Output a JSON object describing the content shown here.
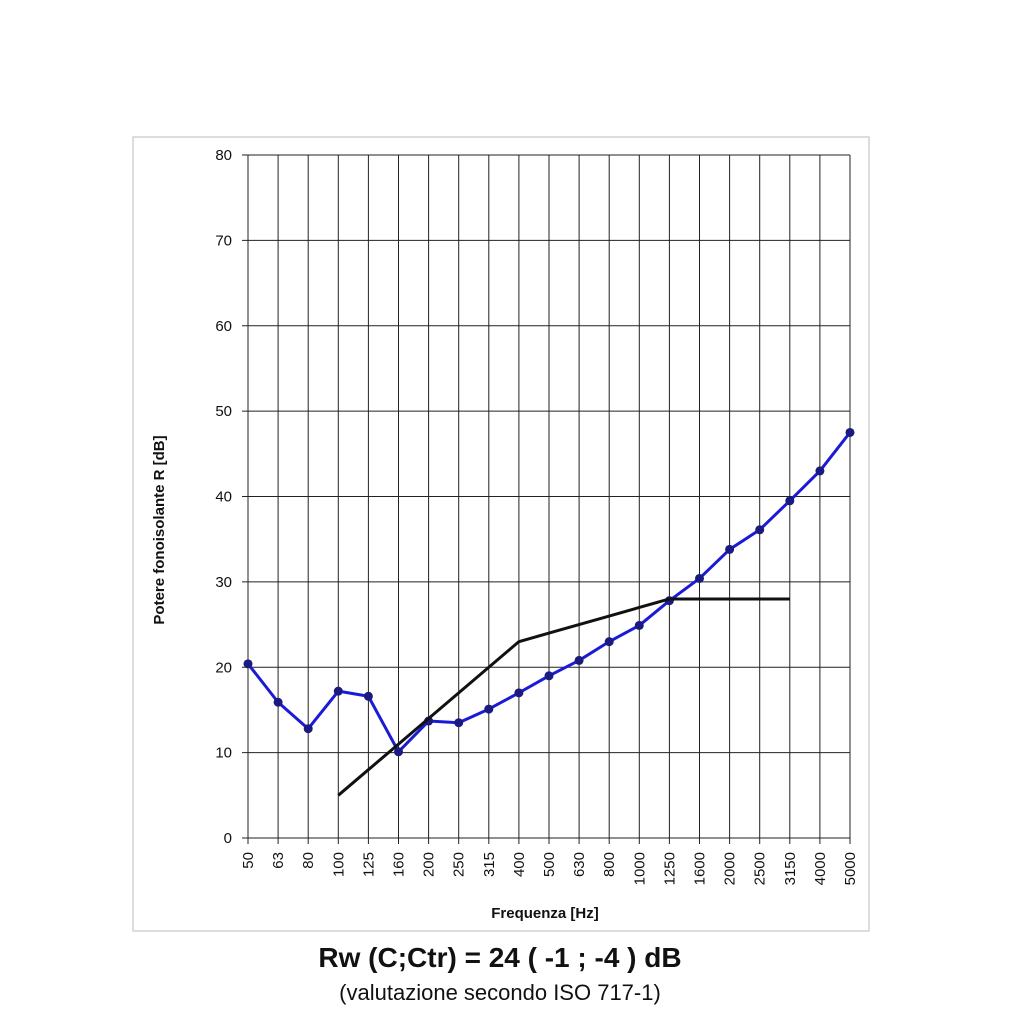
{
  "chart_data": {
    "type": "line",
    "x_label": "Frequenza [Hz]",
    "y_label": "Potere fonoisolante R [dB]",
    "categories": [
      "50",
      "63",
      "80",
      "100",
      "125",
      "160",
      "200",
      "250",
      "315",
      "400",
      "500",
      "630",
      "800",
      "1000",
      "1250",
      "1600",
      "2000",
      "2500",
      "3150",
      "4000",
      "5000"
    ],
    "series": [
      {
        "color": "#1b1bd6",
        "markers": true,
        "values": [
          20.4,
          15.9,
          12.8,
          17.2,
          16.6,
          10.1,
          13.7,
          13.5,
          15.1,
          17.0,
          19.0,
          20.8,
          23.0,
          24.9,
          27.8,
          30.4,
          33.8,
          36.1,
          39.5,
          43.0,
          47.5
        ]
      },
      {
        "color": "#111111",
        "markers": false,
        "values": [
          null,
          null,
          null,
          5,
          8,
          11,
          14,
          17,
          20,
          23,
          24,
          25,
          26,
          27,
          28,
          28,
          28,
          28,
          28,
          null,
          null
        ]
      }
    ],
    "ylim": [
      0,
      80
    ],
    "yticks": [
      0,
      10,
      20,
      30,
      40,
      50,
      60,
      70,
      80
    ],
    "grid": true,
    "annotations": [
      "Rw (C;Ctr) = 24 ( -1 ; -4 ) dB",
      "(valutazione secondo ISO 717-1)"
    ]
  }
}
